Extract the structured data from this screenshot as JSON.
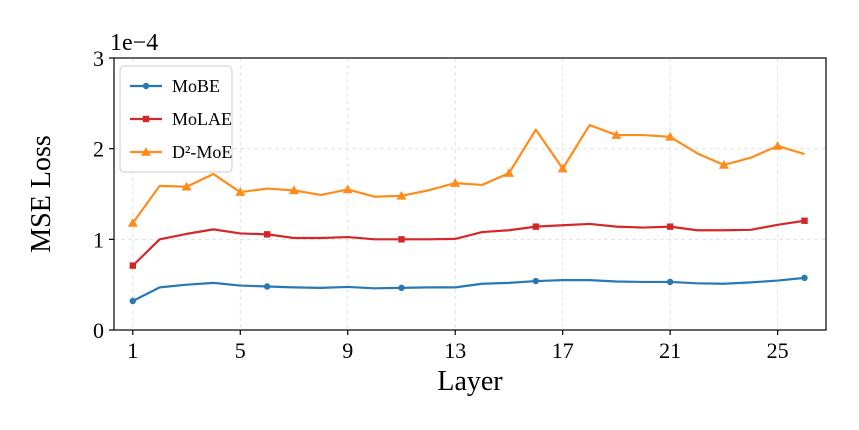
{
  "chart_data": {
    "type": "line",
    "xlabel": "Layer",
    "ylabel": "MSE Loss",
    "y_offset_text": "1e−4",
    "xlim": [
      0.3,
      26.8
    ],
    "ylim": [
      0,
      3
    ],
    "x_ticks": [
      1,
      5,
      9,
      13,
      17,
      21,
      25
    ],
    "y_ticks": [
      0,
      1,
      2,
      3
    ],
    "grid": true,
    "legend_position": "top-left",
    "x": [
      1,
      2,
      3,
      4,
      5,
      6,
      7,
      8,
      9,
      10,
      11,
      12,
      13,
      14,
      15,
      16,
      17,
      18,
      19,
      20,
      21,
      22,
      23,
      24,
      25,
      26
    ],
    "series": [
      {
        "name": "MoBE",
        "color": "#2878b5",
        "marker": "circle",
        "marker_every": 5,
        "values": [
          0.32,
          0.47,
          0.5,
          0.52,
          0.49,
          0.48,
          0.47,
          0.465,
          0.475,
          0.46,
          0.465,
          0.47,
          0.47,
          0.51,
          0.52,
          0.54,
          0.55,
          0.55,
          0.535,
          0.53,
          0.53,
          0.515,
          0.51,
          0.525,
          0.545,
          0.575
        ]
      },
      {
        "name": "MoLAE",
        "color": "#d62728",
        "marker": "square",
        "marker_every": 5,
        "values": [
          0.71,
          1.0,
          1.06,
          1.11,
          1.065,
          1.055,
          1.015,
          1.015,
          1.025,
          1.0,
          1.0,
          1.0,
          1.005,
          1.08,
          1.1,
          1.14,
          1.155,
          1.17,
          1.14,
          1.13,
          1.14,
          1.1,
          1.1,
          1.105,
          1.16,
          1.205
        ]
      },
      {
        "name": "D²-MoE",
        "color": "#ff8c1a",
        "marker": "triangle",
        "marker_every": 2,
        "values": [
          1.18,
          1.59,
          1.58,
          1.72,
          1.52,
          1.56,
          1.54,
          1.49,
          1.55,
          1.47,
          1.48,
          1.54,
          1.62,
          1.6,
          1.73,
          2.21,
          1.78,
          2.26,
          2.15,
          2.15,
          2.13,
          1.95,
          1.82,
          1.9,
          2.03,
          1.94
        ]
      }
    ]
  }
}
